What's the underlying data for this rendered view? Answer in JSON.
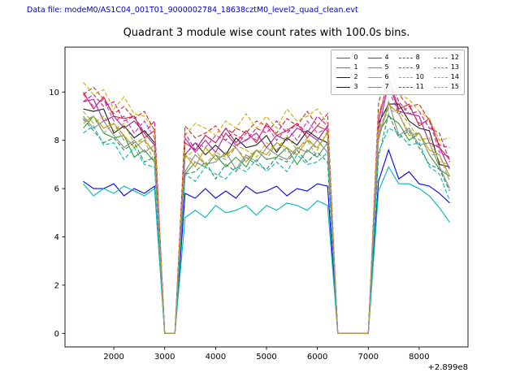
{
  "header": {
    "datafile_label": "Data file: modeM0/AS1C04_001T01_9000002784_18638cztM0_level2_quad_clean.evt",
    "datafile_color": "#0000cc"
  },
  "chart_data": {
    "type": "line",
    "title": "Quadrant 3 module wise count rates with 100.0s bins.",
    "xlabel": "",
    "ylabel": "",
    "x_offset_label": "+2.899e8",
    "xlim": [
      1040,
      8960
    ],
    "ylim": [
      -0.56,
      11.86
    ],
    "x_ticks": [
      2000,
      3000,
      4000,
      5000,
      6000,
      7000,
      8000
    ],
    "y_ticks": [
      0,
      2,
      4,
      6,
      8,
      10
    ],
    "grid": false,
    "legend_position": "upper right",
    "legend_columns": 4,
    "x": [
      1400,
      1600,
      1800,
      2000,
      2200,
      2400,
      2600,
      2800,
      3000,
      3200,
      3400,
      3600,
      3800,
      4000,
      4200,
      4400,
      4600,
      4800,
      5000,
      5200,
      5400,
      5600,
      5800,
      6000,
      6200,
      6400,
      6600,
      6800,
      7000,
      7200,
      7400,
      7600,
      7800,
      8000,
      8200,
      8400,
      8600
    ],
    "series": [
      {
        "name": "0",
        "color": "#d62728",
        "dash": false,
        "values": [
          10.0,
          9.3,
          9.8,
          9.0,
          8.9,
          9.0,
          8.1,
          8.4,
          0,
          0,
          7.9,
          7.6,
          8.2,
          7.9,
          8.5,
          7.9,
          8.4,
          7.9,
          8.7,
          8.2,
          8.4,
          8.7,
          8.1,
          8.6,
          8.4,
          0,
          0,
          0,
          0,
          8.8,
          10.6,
          9.3,
          9.5,
          8.6,
          8.9,
          7.7,
          7.2
        ]
      },
      {
        "name": "1",
        "color": "#2ca02c",
        "dash": false,
        "values": [
          8.5,
          9.0,
          8.3,
          8.1,
          8.2,
          7.3,
          7.6,
          7.1,
          0,
          0,
          6.6,
          7.1,
          6.9,
          7.4,
          6.9,
          7.3,
          6.9,
          7.6,
          7.2,
          7.3,
          7.7,
          7.0,
          7.6,
          7.3,
          7.9,
          0,
          0,
          0,
          0,
          8.3,
          9.0,
          8.7,
          8.0,
          8.3,
          7.4,
          6.8,
          6.5
        ]
      },
      {
        "name": "2",
        "color": "#0000ee",
        "dash": false,
        "values": [
          6.3,
          6.0,
          6.0,
          6.2,
          5.7,
          6.0,
          5.8,
          6.1,
          0,
          0,
          5.8,
          5.6,
          6.0,
          5.6,
          5.9,
          5.6,
          6.1,
          5.8,
          5.9,
          6.1,
          5.7,
          6.0,
          5.9,
          6.2,
          6.1,
          0,
          0,
          0,
          0,
          6.3,
          7.6,
          6.4,
          6.7,
          6.2,
          6.1,
          5.8,
          5.4
        ]
      },
      {
        "name": "3",
        "color": "#1a1a1a",
        "dash": false,
        "values": [
          9.3,
          9.2,
          9.3,
          8.3,
          8.6,
          8.1,
          8.4,
          7.9,
          0,
          0,
          7.4,
          7.9,
          7.4,
          7.8,
          7.4,
          8.1,
          7.7,
          7.8,
          8.2,
          7.5,
          8.1,
          7.8,
          8.4,
          8.1,
          7.9,
          0,
          0,
          0,
          0,
          8.7,
          9.5,
          9.5,
          8.8,
          8.5,
          8.4,
          7.0,
          6.9
        ]
      },
      {
        "name": "4",
        "color": "#a020a0",
        "dash": false,
        "values": [
          9.6,
          9.7,
          8.8,
          9.0,
          8.5,
          8.8,
          8.3,
          7.8,
          0,
          0,
          8.1,
          7.5,
          8.0,
          7.5,
          8.3,
          7.8,
          8.0,
          8.3,
          7.7,
          8.2,
          8.0,
          8.5,
          8.3,
          8.0,
          8.6,
          0,
          0,
          0,
          0,
          8.4,
          10.4,
          9.2,
          9.1,
          9.0,
          7.9,
          7.7,
          6.8
        ]
      },
      {
        "name": "5",
        "color": "#00b8b8",
        "dash": false,
        "values": [
          6.2,
          5.7,
          6.0,
          5.8,
          6.1,
          5.9,
          5.7,
          6.0,
          0,
          0,
          4.8,
          5.1,
          4.8,
          5.3,
          5.0,
          5.1,
          5.3,
          4.9,
          5.3,
          5.1,
          5.4,
          5.3,
          5.1,
          5.5,
          5.3,
          0,
          0,
          0,
          0,
          5.9,
          6.9,
          6.2,
          6.2,
          6.0,
          5.7,
          5.2,
          4.6
        ]
      },
      {
        "name": "6",
        "color": "#cc9900",
        "dash": false,
        "values": [
          8.7,
          9.0,
          8.5,
          8.7,
          8.2,
          7.7,
          8.0,
          7.5,
          0,
          0,
          7.4,
          6.9,
          7.7,
          7.2,
          7.4,
          7.7,
          7.1,
          7.6,
          7.4,
          7.9,
          7.7,
          7.4,
          8.0,
          7.7,
          8.3,
          0,
          0,
          0,
          0,
          8.1,
          9.5,
          9.1,
          8.2,
          8.3,
          7.6,
          7.4,
          6.5
        ]
      },
      {
        "name": "7",
        "color": "#888888",
        "dash": false,
        "values": [
          9.0,
          8.5,
          8.8,
          8.2,
          7.7,
          8.0,
          7.5,
          7.8,
          0,
          0,
          6.7,
          7.4,
          7.0,
          7.1,
          7.5,
          6.8,
          7.4,
          7.1,
          7.7,
          7.4,
          7.2,
          7.7,
          7.5,
          8.0,
          7.5,
          0,
          0,
          0,
          0,
          8.0,
          9.6,
          8.2,
          8.5,
          7.8,
          7.9,
          6.9,
          6.0
        ]
      },
      {
        "name": "8",
        "color": "#d62728",
        "dash": true,
        "values": [
          9.9,
          10.2,
          9.7,
          9.1,
          9.4,
          8.9,
          9.2,
          8.4,
          0,
          0,
          8.6,
          8.1,
          8.3,
          8.6,
          8.0,
          8.5,
          8.3,
          8.8,
          8.6,
          8.3,
          8.9,
          8.6,
          9.2,
          8.6,
          9.1,
          0,
          0,
          0,
          0,
          9.5,
          11.3,
          9.9,
          9.4,
          9.5,
          8.8,
          7.8,
          7.7
        ]
      },
      {
        "name": "9",
        "color": "#2e8b57",
        "dash": true,
        "values": [
          8.9,
          8.4,
          7.9,
          8.1,
          7.6,
          7.9,
          7.1,
          7.3,
          0,
          0,
          6.6,
          6.7,
          7.1,
          6.4,
          7.0,
          6.7,
          7.3,
          7.0,
          6.8,
          7.3,
          7.1,
          7.6,
          7.1,
          7.5,
          7.1,
          0,
          0,
          0,
          0,
          7.3,
          9.1,
          8.1,
          8.4,
          7.7,
          7.0,
          6.8,
          5.9
        ]
      },
      {
        "name": "10",
        "color": "#a8b400",
        "dash": true,
        "values": [
          9.2,
          8.7,
          9.0,
          8.4,
          8.7,
          7.9,
          8.1,
          7.4,
          0,
          0,
          7.3,
          7.6,
          7.0,
          7.5,
          7.3,
          7.8,
          7.6,
          7.3,
          7.9,
          7.6,
          8.2,
          7.6,
          8.1,
          7.6,
          8.4,
          0,
          0,
          0,
          0,
          8.4,
          9.4,
          9.2,
          8.7,
          8.0,
          8.1,
          7.1,
          7.0
        ]
      },
      {
        "name": "11",
        "color": "#c71585",
        "dash": true,
        "values": [
          9.6,
          9.9,
          9.4,
          9.6,
          8.8,
          9.0,
          8.3,
          8.8,
          0,
          0,
          8.3,
          7.6,
          8.2,
          7.9,
          8.5,
          8.2,
          8.0,
          8.5,
          8.3,
          8.8,
          8.3,
          8.7,
          8.3,
          9.0,
          8.6,
          0,
          0,
          0,
          0,
          8.8,
          10.6,
          9.6,
          9.1,
          9.2,
          8.5,
          8.3,
          7.1
        ]
      },
      {
        "name": "12",
        "color": "#cc33cc",
        "dash": true,
        "values": [
          9.9,
          9.4,
          9.7,
          8.8,
          9.0,
          8.3,
          8.8,
          8.1,
          0,
          0,
          7.4,
          7.9,
          7.7,
          8.2,
          8.0,
          7.7,
          8.3,
          8.0,
          8.6,
          8.0,
          8.5,
          8.0,
          8.8,
          8.3,
          8.5,
          0,
          0,
          0,
          0,
          9.1,
          10.1,
          9.1,
          9.4,
          8.7,
          8.8,
          7.5,
          7.3
        ]
      },
      {
        "name": "13",
        "color": "#00b8b8",
        "dash": true,
        "values": [
          8.3,
          8.6,
          7.8,
          7.9,
          7.2,
          7.7,
          7.0,
          6.9,
          0,
          0,
          6.6,
          6.3,
          6.9,
          6.6,
          6.4,
          6.9,
          6.7,
          7.2,
          6.7,
          7.1,
          6.7,
          7.4,
          7.0,
          7.1,
          7.5,
          0,
          0,
          0,
          0,
          7.5,
          8.5,
          8.3,
          7.8,
          7.9,
          6.9,
          6.6,
          5.5
        ]
      },
      {
        "name": "14",
        "color": "#d4aa00",
        "dash": true,
        "values": [
          10.4,
          9.9,
          10.1,
          9.3,
          9.8,
          9.1,
          9.0,
          8.4,
          0,
          0,
          8.2,
          8.7,
          8.5,
          8.2,
          8.8,
          8.5,
          9.1,
          8.5,
          9.0,
          8.5,
          9.3,
          8.8,
          9.0,
          9.3,
          8.7,
          0,
          0,
          0,
          0,
          9.1,
          10.4,
          9.9,
          9.7,
          9.2,
          8.9,
          8.0,
          8.1
        ]
      },
      {
        "name": "15",
        "color": "#999999",
        "dash": true,
        "values": [
          8.8,
          9.0,
          8.3,
          8.7,
          8.0,
          7.9,
          8.0,
          7.1,
          0,
          0,
          7.4,
          7.1,
          6.9,
          7.4,
          7.2,
          7.7,
          7.2,
          7.6,
          7.2,
          7.9,
          7.5,
          7.6,
          8.0,
          7.3,
          7.9,
          0,
          0,
          0,
          0,
          8.3,
          9.3,
          9.1,
          8.3,
          8.3,
          7.4,
          7.4,
          6.3
        ]
      }
    ]
  }
}
